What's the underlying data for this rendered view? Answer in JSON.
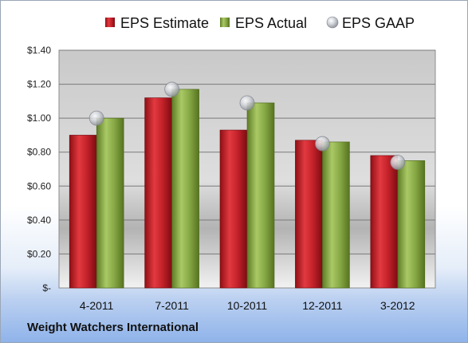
{
  "company_label": "Weight Watchers International",
  "colors": {
    "estimate": "#c0202a",
    "actual": "#8db04a",
    "gaap": "#b8bcc4"
  },
  "chart_data": {
    "type": "bar",
    "categories": [
      "4-2011",
      "7-2011",
      "10-2011",
      "12-2011",
      "3-2012"
    ],
    "series": [
      {
        "name": "EPS Estimate",
        "type": "bar",
        "values": [
          0.9,
          1.12,
          0.93,
          0.87,
          0.78
        ]
      },
      {
        "name": "EPS Actual",
        "type": "bar",
        "values": [
          1.0,
          1.17,
          1.09,
          0.86,
          0.75
        ]
      },
      {
        "name": "EPS GAAP",
        "type": "marker",
        "values": [
          1.0,
          1.17,
          1.09,
          0.85,
          0.74
        ]
      }
    ],
    "ylim": [
      0,
      1.4
    ],
    "yticks": [
      0,
      0.2,
      0.4,
      0.6,
      0.8,
      1.0,
      1.2,
      1.4
    ],
    "ytick_labels": [
      "$-",
      "$0.20",
      "$0.40",
      "$0.60",
      "$0.80",
      "$1.00",
      "$1.20",
      "$1.40"
    ],
    "legend_position": "top",
    "grid": true
  }
}
